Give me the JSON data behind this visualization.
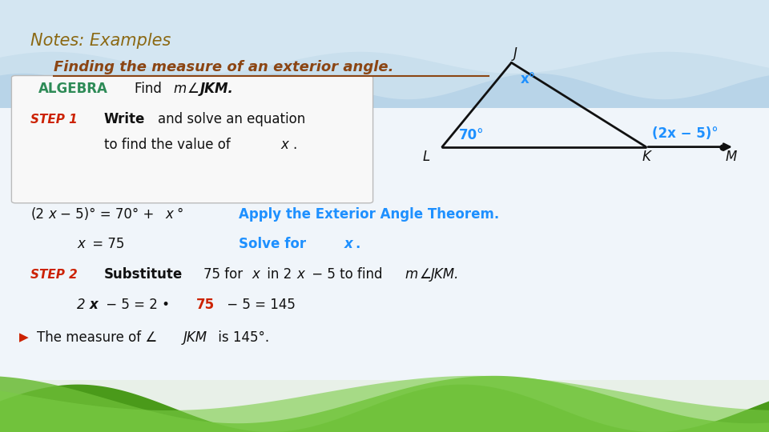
{
  "title_line1": "Notes: Examples",
  "title_line2": "Finding the measure of an exterior angle.",
  "title1_color": "#8B6914",
  "title2_color": "#8B4513",
  "algebra_label": "ALGEBRA",
  "algebra_color": "#2e8b57",
  "step1_label": "STEP 1",
  "step1_color": "#cc2200",
  "step2_label": "STEP 2",
  "cyan_color": "#1e90ff",
  "dark_color": "#111111",
  "red_color": "#cc2200",
  "tri_color": "#111111"
}
